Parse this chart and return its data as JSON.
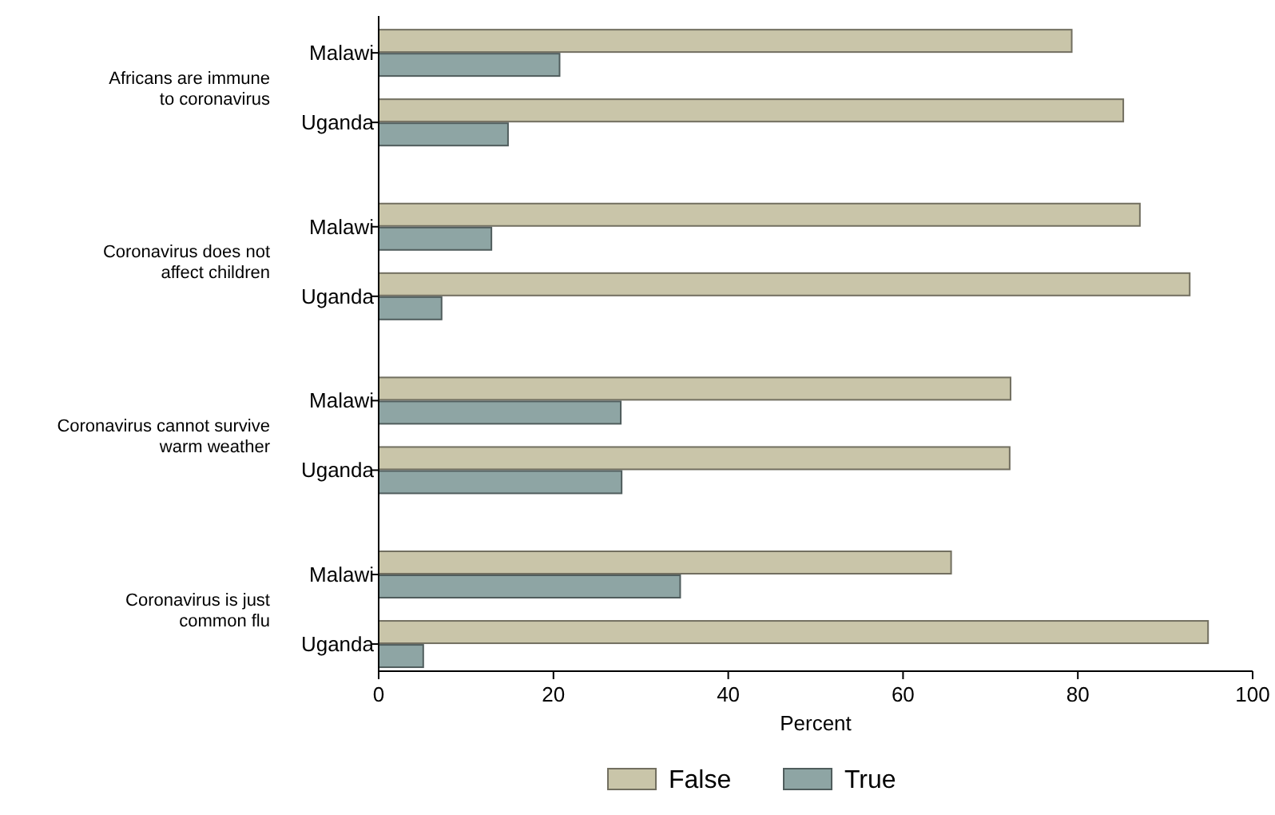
{
  "chart_data": {
    "type": "bar",
    "orientation": "horizontal",
    "xlabel": "Percent",
    "categories": [
      "Malawi",
      "Uganda",
      "Malawi",
      "Uganda",
      "Malawi",
      "Uganda",
      "Malawi",
      "Uganda"
    ],
    "series": [
      {
        "name": "False",
        "color": "#c9c5a9",
        "values": [
          79.3,
          85.2,
          87.1,
          92.8,
          72.3,
          72.2,
          65.5,
          94.9
        ]
      },
      {
        "name": "True",
        "color": "#8ea5a4",
        "values": [
          20.7,
          14.8,
          12.9,
          7.2,
          27.7,
          27.8,
          34.5,
          5.1
        ]
      }
    ],
    "annotations": [
      "Africans are immune\nto coronavirus",
      "Coronavirus does not\naffect children",
      "Coronavirus cannot survive\nwarm weather",
      "Coronavirus is just\ncommon flu"
    ],
    "xlim": [
      0,
      100
    ],
    "xticks": [
      0,
      20,
      40,
      60,
      80,
      100
    ],
    "legend": "bottom"
  }
}
